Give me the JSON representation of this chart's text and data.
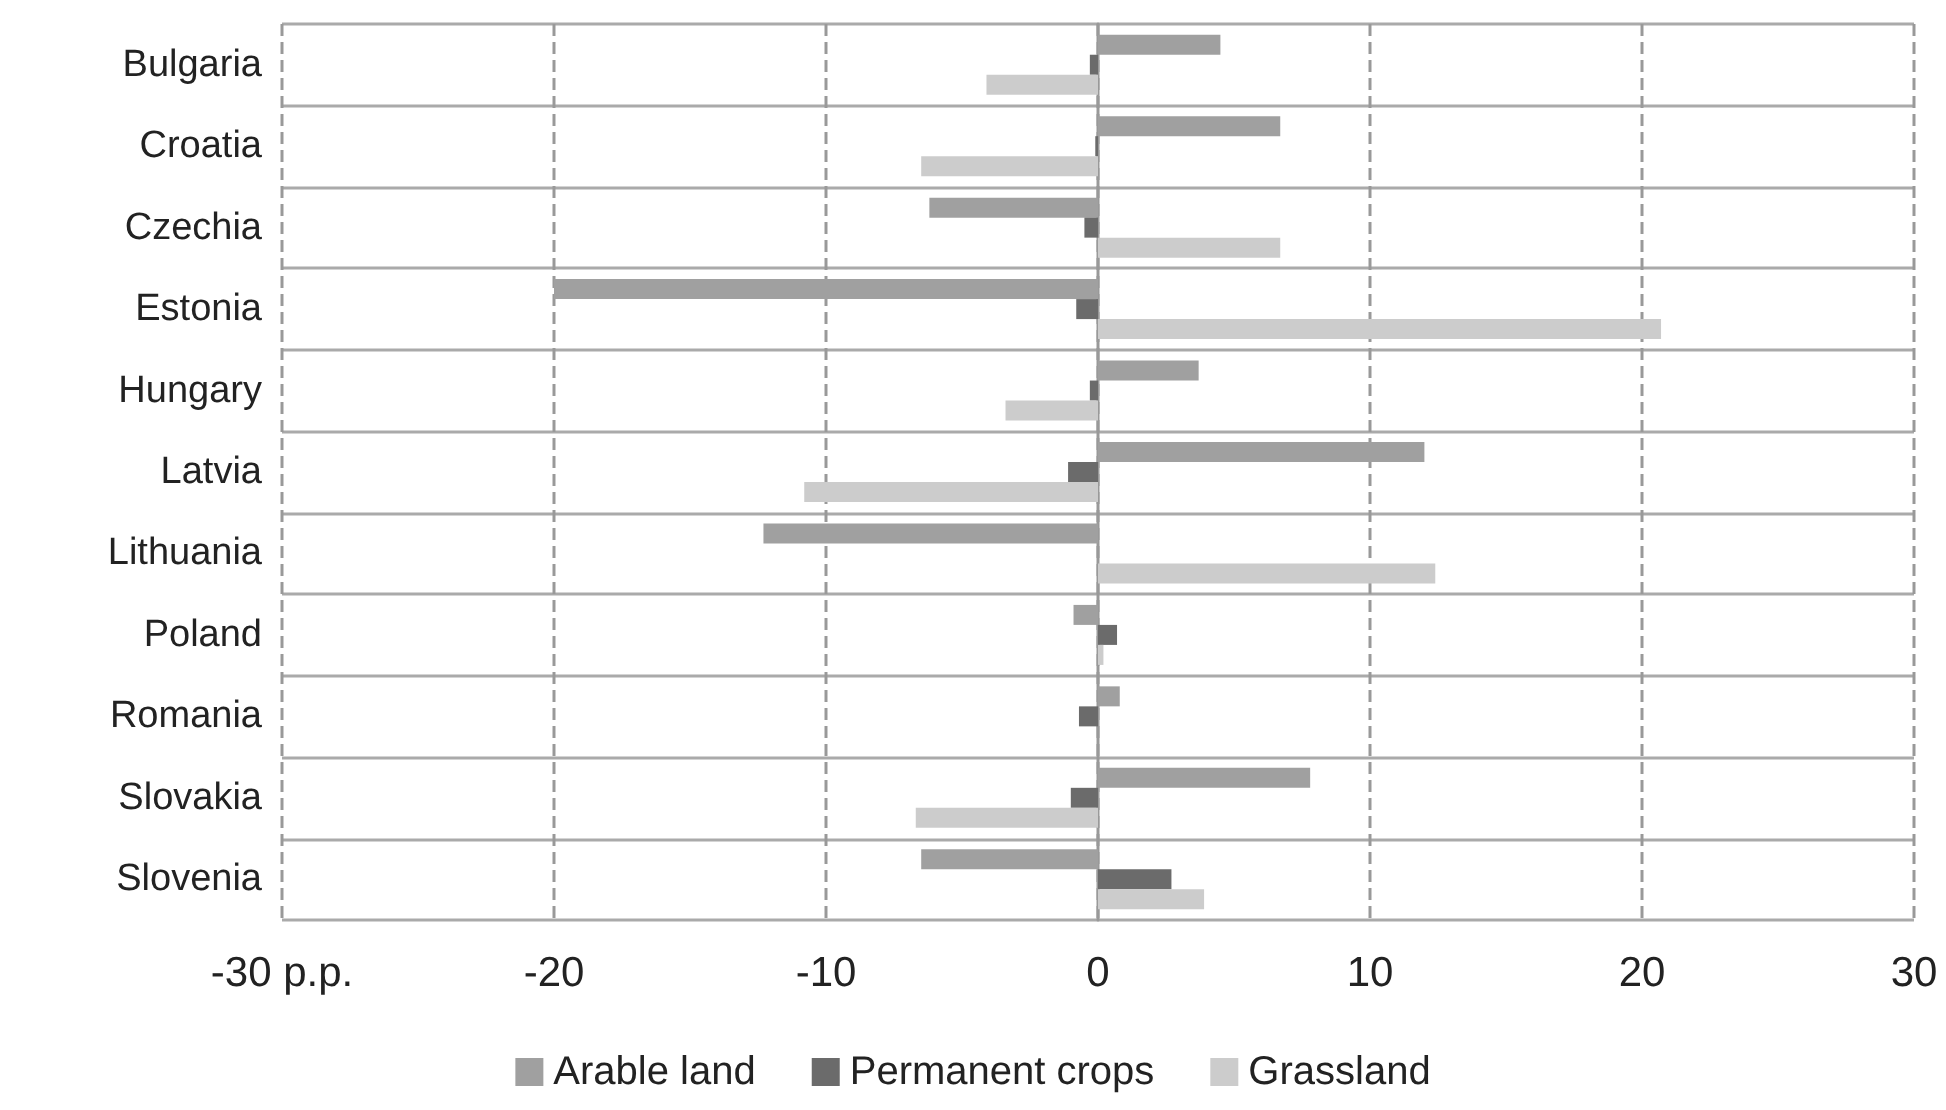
{
  "chart_data": {
    "type": "bar",
    "orientation": "horizontal",
    "categories": [
      "Bulgaria",
      "Croatia",
      "Czechia",
      "Estonia",
      "Hungary",
      "Latvia",
      "Lithuania",
      "Poland",
      "Romania",
      "Slovakia",
      "Slovenia"
    ],
    "series": [
      {
        "name": "Arable land",
        "color": "#a0a0a0",
        "values": [
          4.5,
          6.7,
          -6.2,
          -20.0,
          3.7,
          12.0,
          -12.3,
          -0.9,
          0.8,
          7.8,
          -6.5
        ]
      },
      {
        "name": "Permanent crops",
        "color": "#6b6b6b",
        "values": [
          -0.3,
          -0.1,
          -0.5,
          -0.8,
          -0.3,
          -1.1,
          0,
          0.7,
          -0.7,
          -1.0,
          2.7
        ]
      },
      {
        "name": "Grassland",
        "color": "#cccccc",
        "values": [
          -4.1,
          -6.5,
          6.7,
          20.7,
          -3.4,
          -10.8,
          12.4,
          0.2,
          0,
          -6.7,
          3.9
        ]
      }
    ],
    "xlim": [
      -30,
      30
    ],
    "xticks": [
      {
        "value": -30,
        "label": "-30 p.p."
      },
      -20,
      -10,
      0,
      10,
      20,
      30
    ],
    "grid": true,
    "legend": "bottom"
  }
}
